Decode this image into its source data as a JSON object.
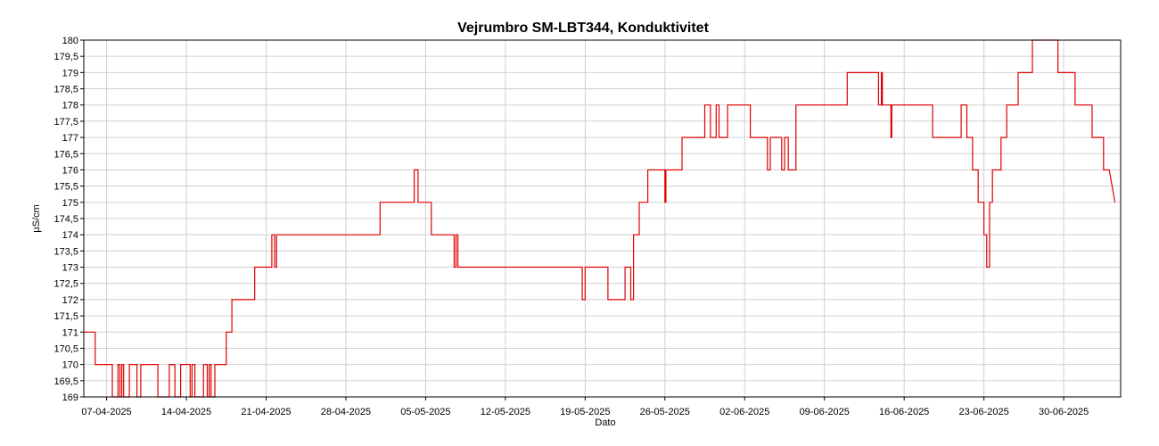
{
  "chart_data": {
    "type": "line",
    "title": "Vejrumbro SM-LBT344, Konduktivitet",
    "xlabel": "Dato",
    "ylabel": "µS/cm",
    "ylim": [
      169,
      180
    ],
    "xlim": [
      "2025-04-05",
      "2025-07-05"
    ],
    "grid": true,
    "line_color": "#e00000",
    "grid_color": "#d0d0d0",
    "x_ticks": [
      "07-04-2025",
      "14-04-2025",
      "21-04-2025",
      "28-04-2025",
      "05-05-2025",
      "12-05-2025",
      "19-05-2025",
      "26-05-2025",
      "02-06-2025",
      "09-06-2025",
      "16-06-2025",
      "23-06-2025",
      "30-06-2025"
    ],
    "x_tick_dates": [
      "2025-04-07",
      "2025-04-14",
      "2025-04-21",
      "2025-04-28",
      "2025-05-05",
      "2025-05-12",
      "2025-05-19",
      "2025-05-26",
      "2025-06-02",
      "2025-06-09",
      "2025-06-16",
      "2025-06-23",
      "2025-06-30"
    ],
    "y_ticks": [
      "169",
      "169,5",
      "170",
      "170,5",
      "171",
      "171,5",
      "172",
      "172,5",
      "173",
      "173,5",
      "174",
      "174,5",
      "175",
      "175,5",
      "176",
      "176,5",
      "177",
      "177,5",
      "178",
      "178,5",
      "179",
      "179,5",
      "180"
    ],
    "y_tick_values": [
      169,
      169.5,
      170,
      170.5,
      171,
      171.5,
      172,
      172.5,
      173,
      173.5,
      174,
      174.5,
      175,
      175.5,
      176,
      176.5,
      177,
      177.5,
      178,
      178.5,
      179,
      179.5,
      180
    ],
    "series": [
      {
        "values": [
          [
            "2025-04-05 00:00",
            171
          ],
          [
            "2025-04-06 00:00",
            171
          ],
          [
            "2025-04-06 00:00",
            170
          ],
          [
            "2025-04-07 12:00",
            170
          ],
          [
            "2025-04-07 12:00",
            169
          ],
          [
            "2025-04-08 00:00",
            169
          ],
          [
            "2025-04-08 00:00",
            170
          ],
          [
            "2025-04-08 04:00",
            170
          ],
          [
            "2025-04-08 04:00",
            169
          ],
          [
            "2025-04-08 08:00",
            169
          ],
          [
            "2025-04-08 08:00",
            170
          ],
          [
            "2025-04-08 12:00",
            170
          ],
          [
            "2025-04-08 12:00",
            169
          ],
          [
            "2025-04-09 00:00",
            169
          ],
          [
            "2025-04-09 00:00",
            170
          ],
          [
            "2025-04-09 16:00",
            170
          ],
          [
            "2025-04-09 16:00",
            169
          ],
          [
            "2025-04-10 00:00",
            169
          ],
          [
            "2025-04-10 00:00",
            170
          ],
          [
            "2025-04-11 12:00",
            170
          ],
          [
            "2025-04-11 12:00",
            169
          ],
          [
            "2025-04-12 12:00",
            169
          ],
          [
            "2025-04-12 12:00",
            170
          ],
          [
            "2025-04-13 00:00",
            170
          ],
          [
            "2025-04-13 00:00",
            169
          ],
          [
            "2025-04-13 12:00",
            169
          ],
          [
            "2025-04-13 12:00",
            170
          ],
          [
            "2025-04-14 08:00",
            170
          ],
          [
            "2025-04-14 08:00",
            169
          ],
          [
            "2025-04-14 12:00",
            169
          ],
          [
            "2025-04-14 12:00",
            170
          ],
          [
            "2025-04-14 18:00",
            170
          ],
          [
            "2025-04-14 18:00",
            169
          ],
          [
            "2025-04-15 12:00",
            169
          ],
          [
            "2025-04-15 12:00",
            170
          ],
          [
            "2025-04-15 20:00",
            170
          ],
          [
            "2025-04-15 20:00",
            169
          ],
          [
            "2025-04-16 00:00",
            169
          ],
          [
            "2025-04-16 00:00",
            170
          ],
          [
            "2025-04-16 04:00",
            170
          ],
          [
            "2025-04-16 04:00",
            169
          ],
          [
            "2025-04-16 12:00",
            169
          ],
          [
            "2025-04-16 12:00",
            170
          ],
          [
            "2025-04-17 12:00",
            170
          ],
          [
            "2025-04-17 12:00",
            171
          ],
          [
            "2025-04-18 00:00",
            171
          ],
          [
            "2025-04-18 00:00",
            172
          ],
          [
            "2025-04-20 00:00",
            172
          ],
          [
            "2025-04-20 00:00",
            173
          ],
          [
            "2025-04-21 12:00",
            173
          ],
          [
            "2025-04-21 12:00",
            174
          ],
          [
            "2025-04-21 18:00",
            174
          ],
          [
            "2025-04-21 18:00",
            173
          ],
          [
            "2025-04-21 22:00",
            173
          ],
          [
            "2025-04-21 22:00",
            174
          ],
          [
            "2025-05-01 00:00",
            174
          ],
          [
            "2025-05-01 00:00",
            175
          ],
          [
            "2025-05-04 00:00",
            175
          ],
          [
            "2025-05-04 00:00",
            176
          ],
          [
            "2025-05-04 08:00",
            176
          ],
          [
            "2025-05-04 08:00",
            175
          ],
          [
            "2025-05-05 12:00",
            175
          ],
          [
            "2025-05-05 12:00",
            174
          ],
          [
            "2025-05-07 12:00",
            174
          ],
          [
            "2025-05-07 12:00",
            173
          ],
          [
            "2025-05-07 16:00",
            173
          ],
          [
            "2025-05-07 16:00",
            174
          ],
          [
            "2025-05-07 20:00",
            174
          ],
          [
            "2025-05-07 20:00",
            173
          ],
          [
            "2025-05-18 18:00",
            173
          ],
          [
            "2025-05-18 18:00",
            172
          ],
          [
            "2025-05-19 00:00",
            172
          ],
          [
            "2025-05-19 00:00",
            173
          ],
          [
            "2025-05-21 00:00",
            173
          ],
          [
            "2025-05-21 00:00",
            172
          ],
          [
            "2025-05-22 12:00",
            172
          ],
          [
            "2025-05-22 12:00",
            173
          ],
          [
            "2025-05-23 00:00",
            173
          ],
          [
            "2025-05-23 00:00",
            172
          ],
          [
            "2025-05-23 06:00",
            172
          ],
          [
            "2025-05-23 06:00",
            174
          ],
          [
            "2025-05-23 18:00",
            174
          ],
          [
            "2025-05-23 18:00",
            175
          ],
          [
            "2025-05-24 12:00",
            175
          ],
          [
            "2025-05-24 12:00",
            176
          ],
          [
            "2025-05-26 00:00",
            176
          ],
          [
            "2025-05-26 00:00",
            175
          ],
          [
            "2025-05-26 02:00",
            175
          ],
          [
            "2025-05-26 02:00",
            176
          ],
          [
            "2025-05-27 12:00",
            176
          ],
          [
            "2025-05-27 12:00",
            177
          ],
          [
            "2025-05-29 12:00",
            177
          ],
          [
            "2025-05-29 12:00",
            178
          ],
          [
            "2025-05-30 00:00",
            178
          ],
          [
            "2025-05-30 00:00",
            177
          ],
          [
            "2025-05-30 12:00",
            177
          ],
          [
            "2025-05-30 12:00",
            178
          ],
          [
            "2025-05-30 18:00",
            178
          ],
          [
            "2025-05-30 18:00",
            177
          ],
          [
            "2025-05-31 12:00",
            177
          ],
          [
            "2025-05-31 12:00",
            178
          ],
          [
            "2025-06-02 12:00",
            178
          ],
          [
            "2025-06-02 12:00",
            177
          ],
          [
            "2025-06-04 00:00",
            177
          ],
          [
            "2025-06-04 00:00",
            176
          ],
          [
            "2025-06-04 06:00",
            176
          ],
          [
            "2025-06-04 06:00",
            177
          ],
          [
            "2025-06-05 06:00",
            177
          ],
          [
            "2025-06-05 06:00",
            176
          ],
          [
            "2025-06-05 12:00",
            176
          ],
          [
            "2025-06-05 12:00",
            177
          ],
          [
            "2025-06-05 20:00",
            177
          ],
          [
            "2025-06-05 20:00",
            176
          ],
          [
            "2025-06-06 12:00",
            176
          ],
          [
            "2025-06-06 12:00",
            178
          ],
          [
            "2025-06-11 00:00",
            178
          ],
          [
            "2025-06-11 00:00",
            179
          ],
          [
            "2025-06-13 18:00",
            179
          ],
          [
            "2025-06-13 18:00",
            178
          ],
          [
            "2025-06-14 00:00",
            178
          ],
          [
            "2025-06-14 00:00",
            179
          ],
          [
            "2025-06-14 02:00",
            179
          ],
          [
            "2025-06-14 02:00",
            178
          ],
          [
            "2025-06-14 20:00",
            178
          ],
          [
            "2025-06-14 20:00",
            177
          ],
          [
            "2025-06-14 22:00",
            177
          ],
          [
            "2025-06-14 22:00",
            178
          ],
          [
            "2025-06-18 12:00",
            178
          ],
          [
            "2025-06-18 12:00",
            177
          ],
          [
            "2025-06-21 00:00",
            177
          ],
          [
            "2025-06-21 00:00",
            178
          ],
          [
            "2025-06-21 12:00",
            178
          ],
          [
            "2025-06-21 12:00",
            177
          ],
          [
            "2025-06-22 00:00",
            177
          ],
          [
            "2025-06-22 00:00",
            176
          ],
          [
            "2025-06-22 12:00",
            176
          ],
          [
            "2025-06-22 12:00",
            175
          ],
          [
            "2025-06-23 00:00",
            175
          ],
          [
            "2025-06-23 00:00",
            174
          ],
          [
            "2025-06-23 06:00",
            174
          ],
          [
            "2025-06-23 06:00",
            173
          ],
          [
            "2025-06-23 12:00",
            173
          ],
          [
            "2025-06-23 12:00",
            175
          ],
          [
            "2025-06-23 18:00",
            175
          ],
          [
            "2025-06-23 18:00",
            176
          ],
          [
            "2025-06-24 12:00",
            176
          ],
          [
            "2025-06-24 12:00",
            177
          ],
          [
            "2025-06-25 00:00",
            177
          ],
          [
            "2025-06-25 00:00",
            178
          ],
          [
            "2025-06-26 00:00",
            178
          ],
          [
            "2025-06-26 00:00",
            179
          ],
          [
            "2025-06-27 06:00",
            179
          ],
          [
            "2025-06-27 06:00",
            180
          ],
          [
            "2025-06-29 12:00",
            180
          ],
          [
            "2025-06-29 12:00",
            179
          ],
          [
            "2025-07-01 00:00",
            179
          ],
          [
            "2025-07-01 00:00",
            178
          ],
          [
            "2025-07-02 12:00",
            178
          ],
          [
            "2025-07-02 12:00",
            177
          ],
          [
            "2025-07-03 12:00",
            177
          ],
          [
            "2025-07-03 12:00",
            176
          ],
          [
            "2025-07-04 00:00",
            176
          ],
          [
            "2025-07-04 12:00",
            175
          ]
        ]
      }
    ]
  }
}
